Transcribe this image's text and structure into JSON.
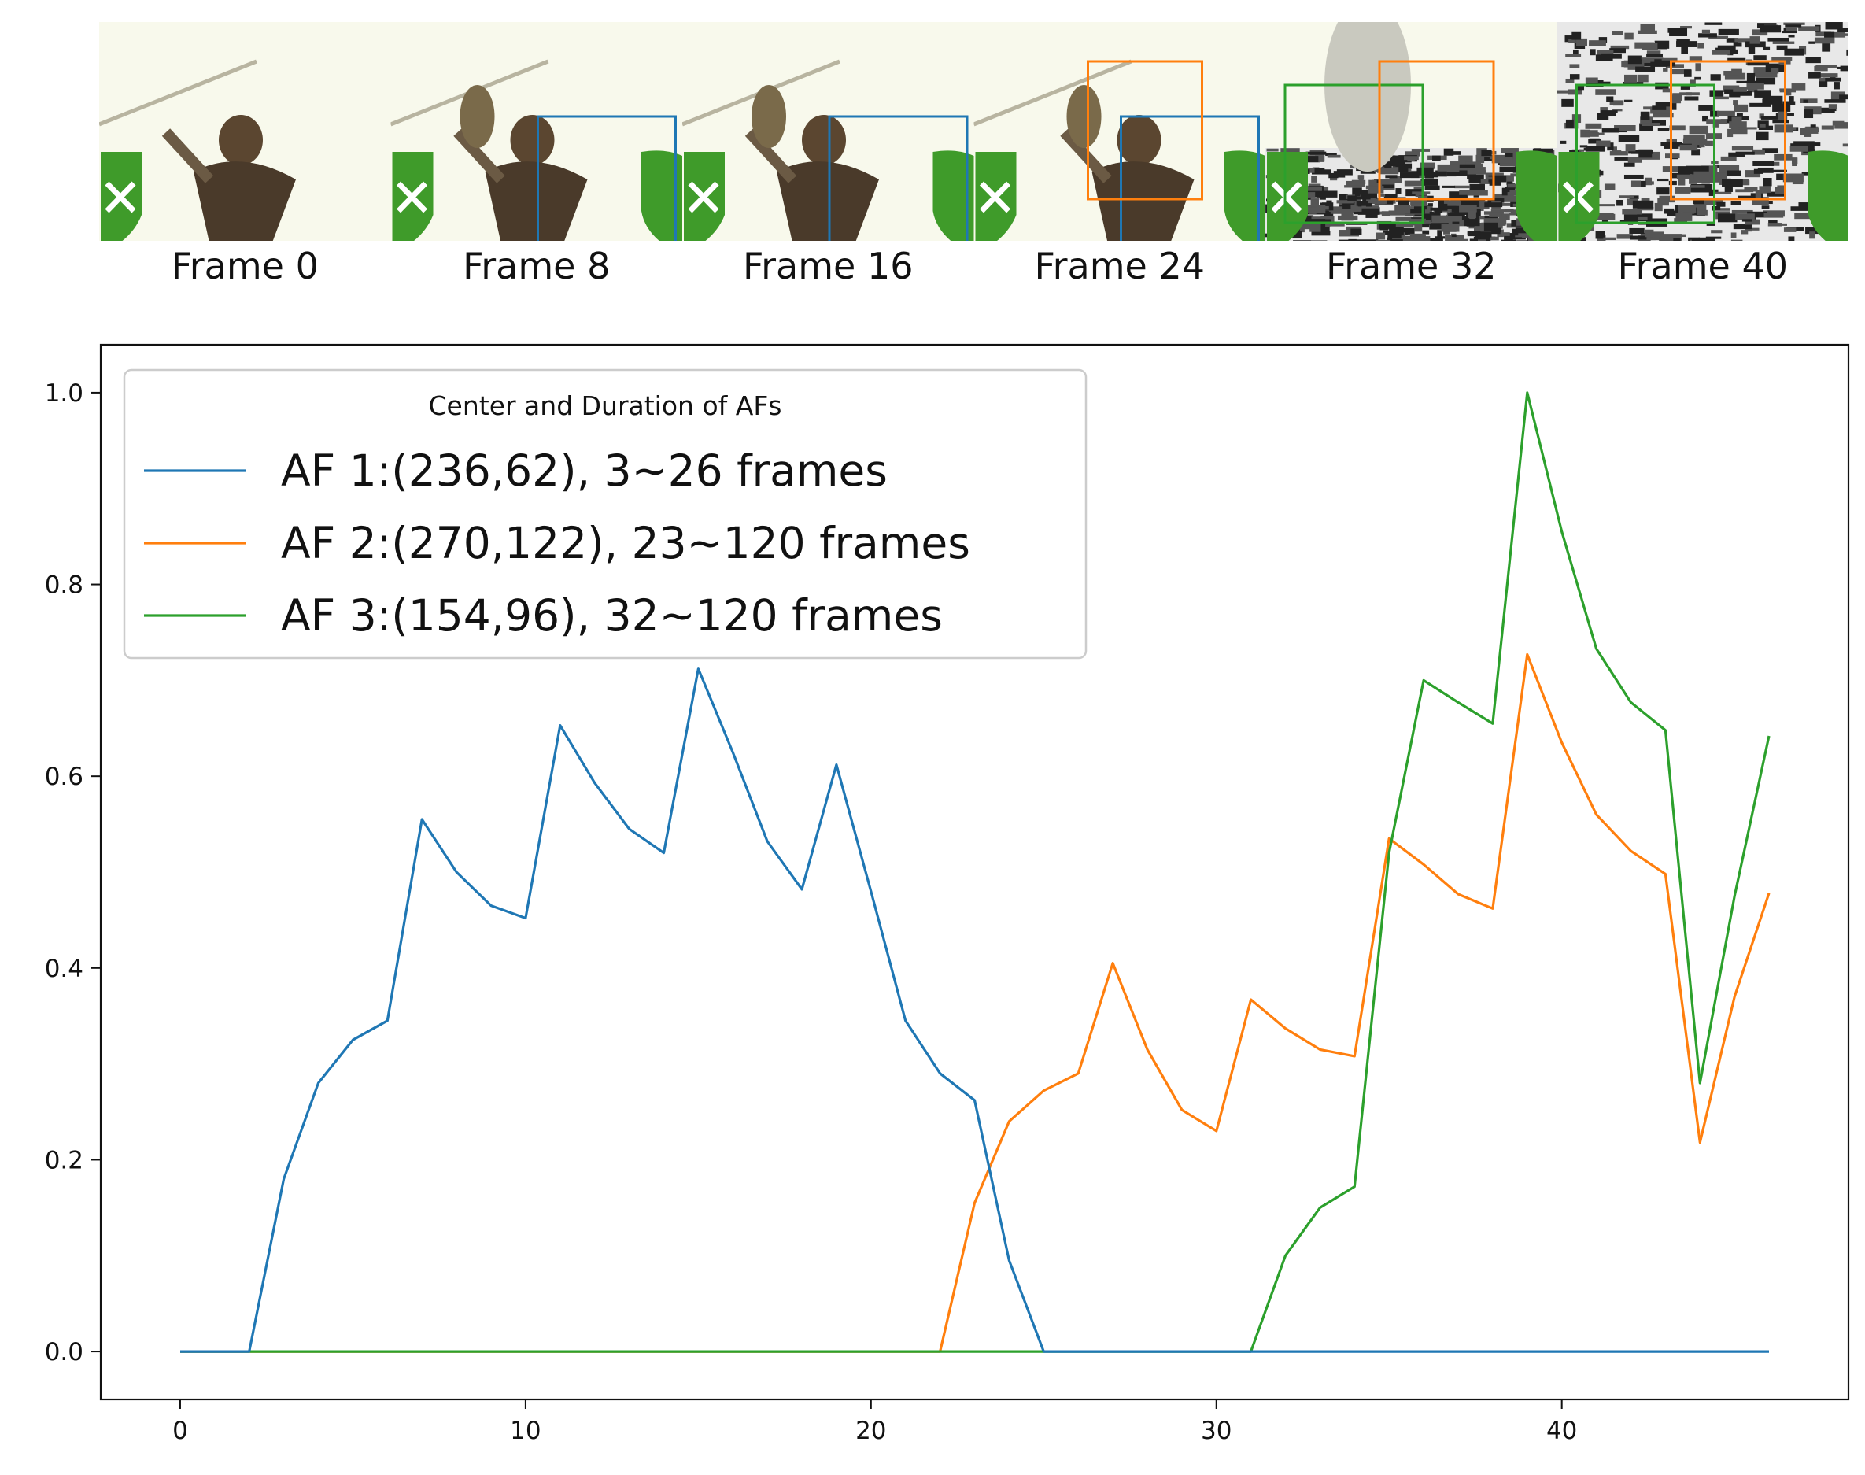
{
  "frames": {
    "captions": [
      "Frame 0",
      "Frame 8",
      "Frame 16",
      "Frame 24",
      "Frame 32",
      "Frame 40"
    ],
    "boxes": [
      [],
      [
        {
          "series": 0
        }
      ],
      [
        {
          "series": 0
        }
      ],
      [
        {
          "series": 0
        },
        {
          "series": 1
        }
      ],
      [
        {
          "series": 2
        },
        {
          "series": 1
        }
      ],
      [
        {
          "series": 2
        },
        {
          "series": 1
        }
      ]
    ]
  },
  "legend": {
    "title": "Center and Duration of AFs",
    "placement": "upper-left"
  },
  "colors": {
    "series": [
      "#1f77b4",
      "#ff7f0e",
      "#2ca02c"
    ],
    "logo_green": "#3f9b2a",
    "frame_bg": "#f8f9ec"
  },
  "chart_data": {
    "type": "line",
    "x": [
      0,
      1,
      2,
      3,
      4,
      5,
      6,
      7,
      8,
      9,
      10,
      11,
      12,
      13,
      14,
      15,
      16,
      17,
      18,
      19,
      20,
      21,
      22,
      23,
      24,
      25,
      26,
      27,
      28,
      29,
      30,
      31,
      32,
      33,
      34,
      35,
      36,
      37,
      38,
      39,
      40,
      41,
      42,
      43,
      44,
      45,
      46
    ],
    "xlim": [
      -2.3,
      48.3
    ],
    "ylim": [
      -0.05,
      1.05
    ],
    "xticks": [
      0,
      10,
      20,
      30,
      40
    ],
    "yticks": [
      0.0,
      0.2,
      0.4,
      0.6,
      0.8,
      1.0
    ],
    "xtick_labels": [
      "0",
      "10",
      "20",
      "30",
      "40"
    ],
    "ytick_labels": [
      "0.0",
      "0.2",
      "0.4",
      "0.6",
      "0.8",
      "1.0"
    ],
    "grid": false,
    "series": [
      {
        "name": "AF 1:(236,62), 3~26 frames",
        "values": [
          0,
          0,
          0,
          0.18,
          0.28,
          0.325,
          0.345,
          0.555,
          0.5,
          0.465,
          0.452,
          0.653,
          0.593,
          0.545,
          0.52,
          0.712,
          0.625,
          0.532,
          0.482,
          0.612,
          0.48,
          0.345,
          0.29,
          0.262,
          0.095,
          0,
          0,
          0,
          0,
          0,
          0,
          0,
          0,
          0,
          0,
          0,
          0,
          0,
          0,
          0,
          0,
          0,
          0,
          0,
          0,
          0,
          0
        ]
      },
      {
        "name": "AF 2:(270,122), 23~120 frames",
        "values": [
          0,
          0,
          0,
          0,
          0,
          0,
          0,
          0,
          0,
          0,
          0,
          0,
          0,
          0,
          0,
          0,
          0,
          0,
          0,
          0,
          0,
          0,
          0,
          0.155,
          0.24,
          0.272,
          0.29,
          0.405,
          0.315,
          0.252,
          0.23,
          0.367,
          0.337,
          0.315,
          0.308,
          0.535,
          0.508,
          0.477,
          0.462,
          0.727,
          0.635,
          0.56,
          0.522,
          0.498,
          0.218,
          0.37,
          0.478
        ]
      },
      {
        "name": "AF 3:(154,96), 32~120 frames",
        "values": [
          0,
          0,
          0,
          0,
          0,
          0,
          0,
          0,
          0,
          0,
          0,
          0,
          0,
          0,
          0,
          0,
          0,
          0,
          0,
          0,
          0,
          0,
          0,
          0,
          0,
          0,
          0,
          0,
          0,
          0,
          0,
          0,
          0.1,
          0.15,
          0.172,
          0.52,
          0.7,
          0.677,
          0.655,
          1.0,
          0.855,
          0.733,
          0.677,
          0.648,
          0.28,
          0.475,
          0.642
        ]
      }
    ]
  }
}
